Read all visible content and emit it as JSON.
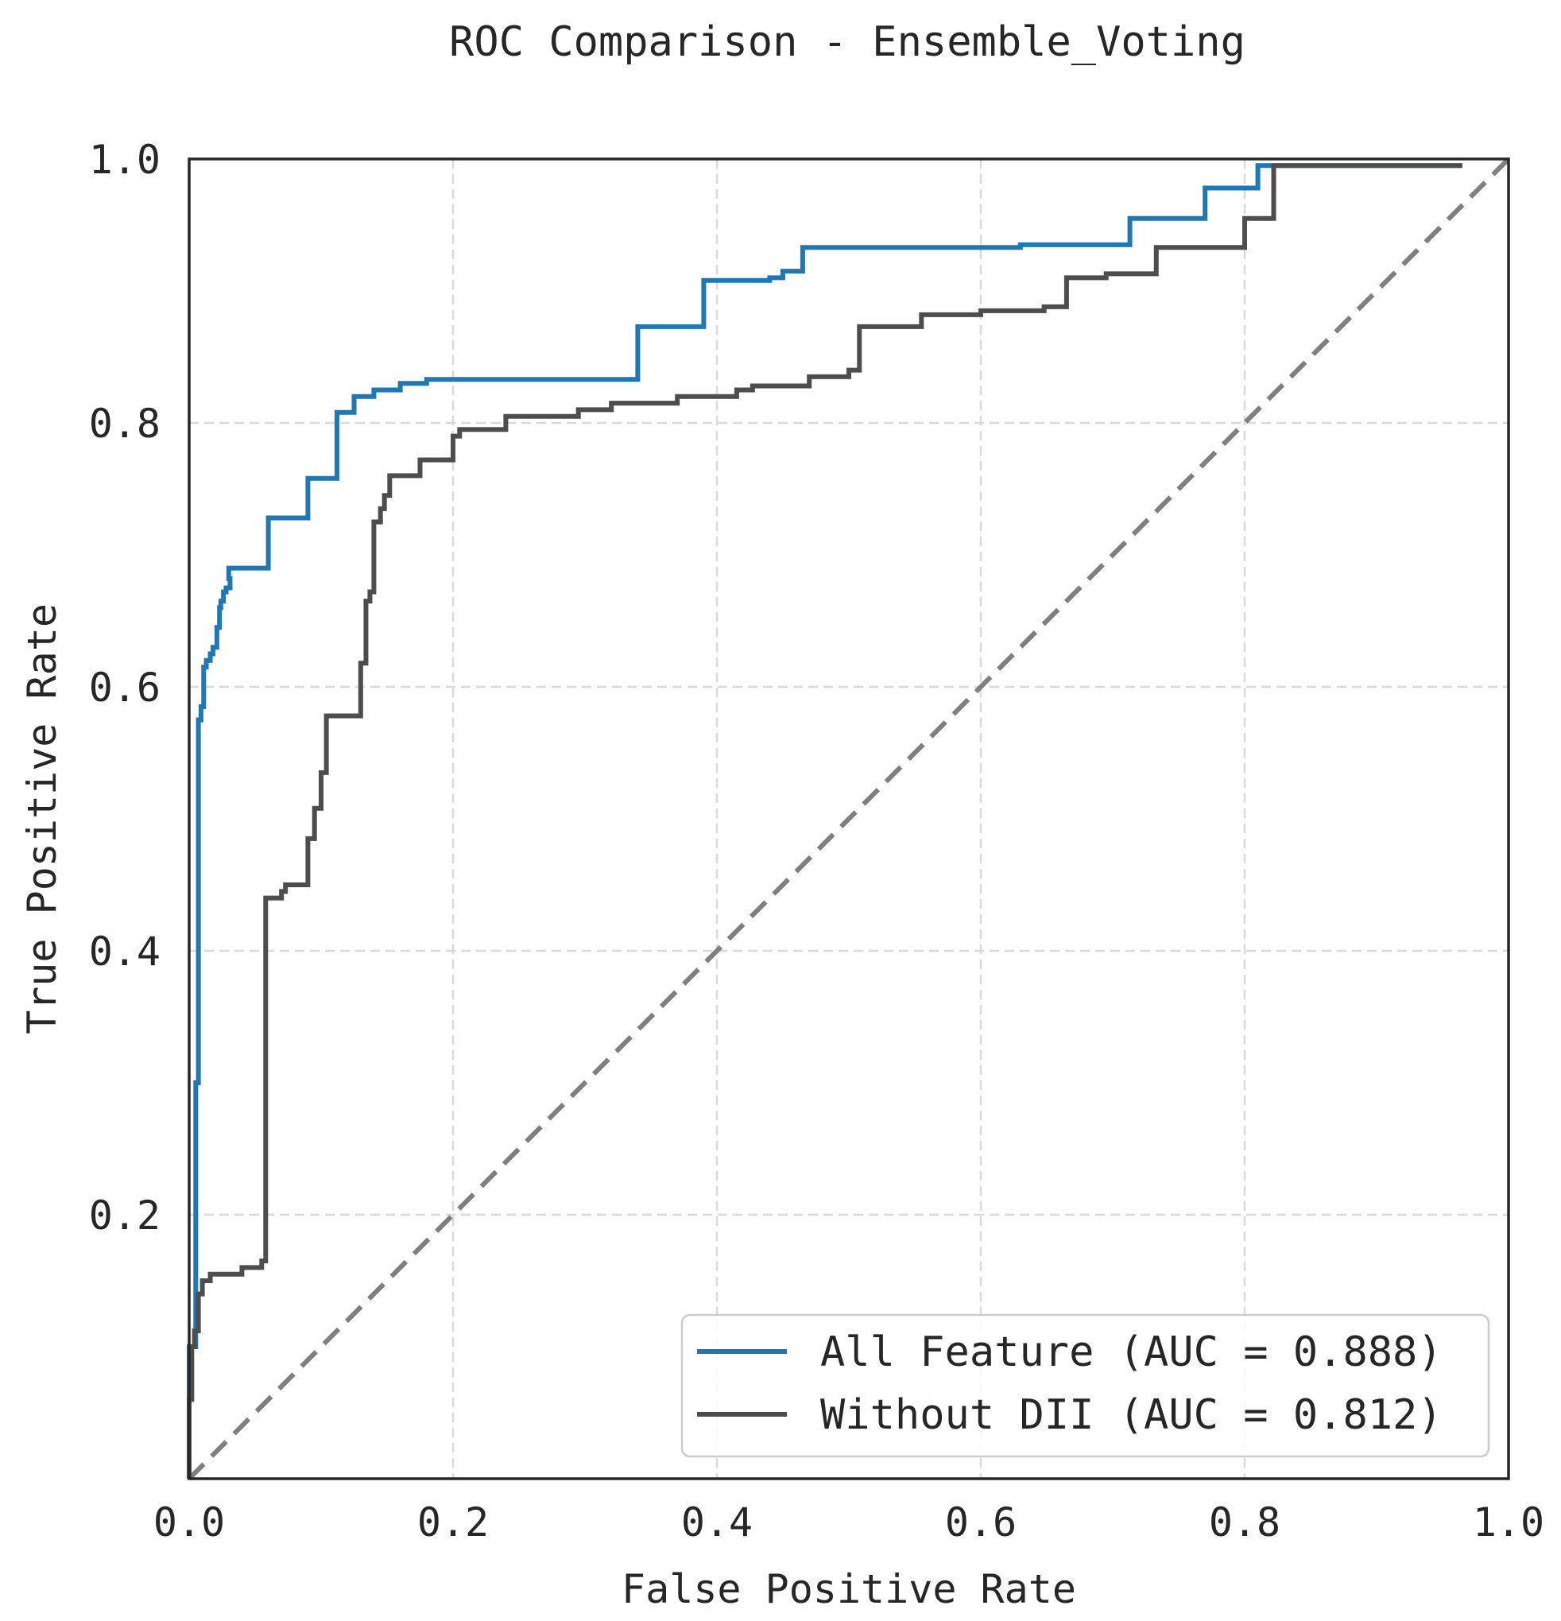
{
  "chart_data": {
    "type": "line",
    "title": "ROC Comparison - Ensemble_Voting",
    "xlabel": "False Positive Rate",
    "ylabel": "True Positive Rate",
    "xlim": [
      0.0,
      1.0
    ],
    "ylim": [
      0.0,
      1.0
    ],
    "x_ticks": [
      "0.0",
      "0.2",
      "0.4",
      "0.6",
      "0.8",
      "1.0"
    ],
    "y_ticks": [
      "0.2",
      "0.4",
      "0.6",
      "0.8",
      "1.0"
    ],
    "grid": true,
    "legend_position": "lower-right",
    "diagonal_color": "#7f7f7f",
    "series": [
      {
        "name": "All Feature (AUC = 0.888)",
        "color": "#1f77b4",
        "x": [
          0.0,
          0.0,
          0.005,
          0.005,
          0.007,
          0.007,
          0.009,
          0.009,
          0.011,
          0.011,
          0.013,
          0.013,
          0.016,
          0.016,
          0.018,
          0.018,
          0.021,
          0.021,
          0.023,
          0.023,
          0.024,
          0.024,
          0.026,
          0.026,
          0.028,
          0.028,
          0.031,
          0.031,
          0.03,
          0.03,
          0.06,
          0.06,
          0.09,
          0.09,
          0.112,
          0.112,
          0.125,
          0.125,
          0.14,
          0.14,
          0.16,
          0.16,
          0.18,
          0.18,
          0.34,
          0.34,
          0.39,
          0.39,
          0.44,
          0.44,
          0.45,
          0.45,
          0.465,
          0.465,
          0.63,
          0.63,
          0.713,
          0.713,
          0.77,
          0.77,
          0.81,
          0.81,
          0.825,
          0.825,
          0.965
        ],
        "y": [
          0.0,
          0.1,
          0.1,
          0.3,
          0.3,
          0.575,
          0.575,
          0.585,
          0.585,
          0.615,
          0.615,
          0.62,
          0.62,
          0.625,
          0.625,
          0.63,
          0.63,
          0.645,
          0.645,
          0.66,
          0.66,
          0.665,
          0.665,
          0.672,
          0.672,
          0.675,
          0.675,
          0.682,
          0.682,
          0.69,
          0.69,
          0.728,
          0.728,
          0.758,
          0.758,
          0.808,
          0.808,
          0.82,
          0.82,
          0.825,
          0.825,
          0.83,
          0.83,
          0.833,
          0.833,
          0.873,
          0.873,
          0.908,
          0.908,
          0.91,
          0.91,
          0.915,
          0.915,
          0.933,
          0.933,
          0.935,
          0.935,
          0.955,
          0.955,
          0.978,
          0.978,
          0.995,
          0.995,
          0.995,
          0.995
        ]
      },
      {
        "name": "Without DII (AUC = 0.812)",
        "color": "#4d4d4d",
        "x": [
          0.0,
          0.0,
          0.002,
          0.002,
          0.004,
          0.004,
          0.007,
          0.007,
          0.01,
          0.01,
          0.016,
          0.016,
          0.04,
          0.04,
          0.055,
          0.055,
          0.058,
          0.058,
          0.07,
          0.07,
          0.073,
          0.073,
          0.09,
          0.09,
          0.095,
          0.095,
          0.1,
          0.1,
          0.104,
          0.104,
          0.13,
          0.13,
          0.134,
          0.134,
          0.137,
          0.137,
          0.14,
          0.14,
          0.145,
          0.145,
          0.148,
          0.148,
          0.152,
          0.152,
          0.175,
          0.175,
          0.2,
          0.2,
          0.205,
          0.205,
          0.24,
          0.24,
          0.295,
          0.295,
          0.32,
          0.32,
          0.37,
          0.37,
          0.415,
          0.415,
          0.427,
          0.427,
          0.47,
          0.47,
          0.5,
          0.5,
          0.508,
          0.508,
          0.555,
          0.555,
          0.6,
          0.6,
          0.648,
          0.648,
          0.665,
          0.665,
          0.695,
          0.695,
          0.733,
          0.733,
          0.8,
          0.8,
          0.822,
          0.822,
          0.965
        ],
        "y": [
          0.0,
          0.06,
          0.06,
          0.1,
          0.1,
          0.112,
          0.112,
          0.14,
          0.14,
          0.15,
          0.15,
          0.155,
          0.155,
          0.16,
          0.16,
          0.165,
          0.165,
          0.44,
          0.44,
          0.445,
          0.445,
          0.45,
          0.45,
          0.485,
          0.485,
          0.508,
          0.508,
          0.535,
          0.535,
          0.578,
          0.578,
          0.618,
          0.618,
          0.665,
          0.665,
          0.672,
          0.672,
          0.725,
          0.725,
          0.735,
          0.735,
          0.745,
          0.745,
          0.76,
          0.76,
          0.772,
          0.772,
          0.79,
          0.79,
          0.795,
          0.795,
          0.805,
          0.805,
          0.81,
          0.81,
          0.815,
          0.815,
          0.82,
          0.82,
          0.825,
          0.825,
          0.828,
          0.828,
          0.835,
          0.835,
          0.84,
          0.84,
          0.873,
          0.873,
          0.882,
          0.882,
          0.885,
          0.885,
          0.888,
          0.888,
          0.91,
          0.91,
          0.913,
          0.913,
          0.933,
          0.933,
          0.955,
          0.955,
          0.995,
          0.995
        ]
      }
    ]
  }
}
